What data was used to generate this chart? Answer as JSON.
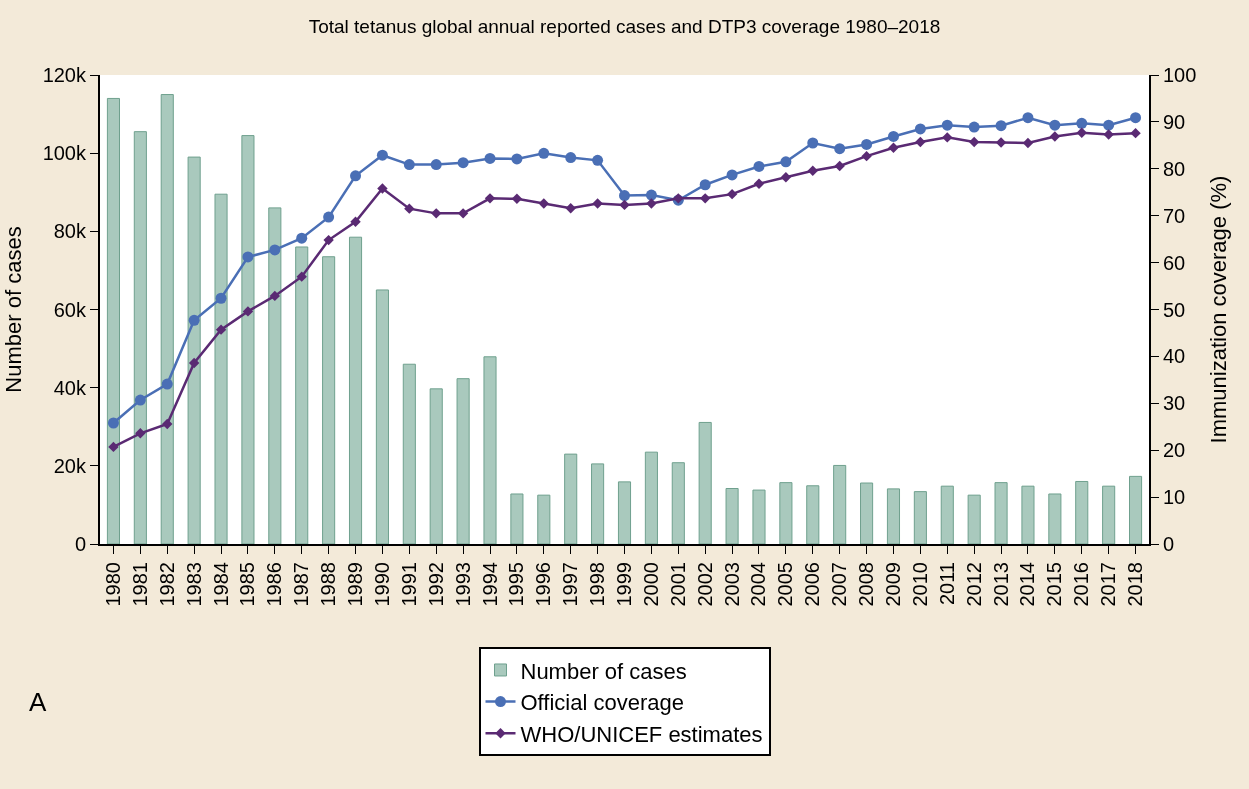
{
  "chart_data": {
    "type": "bar",
    "title": "Total tetanus global annual reported cases and DTP3 coverage 1980–2018",
    "xlabel": null,
    "ylabel": "Number of cases",
    "y2label": "Immunization coverage (%)",
    "categories": [
      "1980",
      "1981",
      "1982",
      "1983",
      "1984",
      "1985",
      "1986",
      "1987",
      "1988",
      "1989",
      "1990",
      "1991",
      "1992",
      "1993",
      "1994",
      "1995",
      "1996",
      "1997",
      "1998",
      "1999",
      "2000",
      "2001",
      "2002",
      "2003",
      "2004",
      "2005",
      "2006",
      "2007",
      "2008",
      "2009",
      "2010",
      "2011",
      "2012",
      "2013",
      "2014",
      "2015",
      "2016",
      "2017",
      "2018"
    ],
    "series": [
      {
        "name": "Number of cases",
        "color": "#a9c9bd",
        "values": [
          114000,
          105500,
          115000,
          99000,
          89500,
          104500,
          86000,
          76000,
          73500,
          78500,
          65000,
          46000,
          39700,
          42300,
          47900,
          12800,
          12500,
          23000,
          20500,
          15900,
          23500,
          20800,
          31100,
          14200,
          13800,
          15700,
          14900,
          20100,
          15600,
          14100,
          13400,
          14800,
          12500,
          15700,
          14800,
          12800,
          16000,
          14800,
          17300
        ]
      },
      {
        "name": "Official coverage",
        "type": "line",
        "axis": "y2",
        "marker": "circle",
        "color": "#4a6fb5",
        "values": [
          25.8,
          30.7,
          34.1,
          47.7,
          52.4,
          61.2,
          62.7,
          65.2,
          69.7,
          78.5,
          82.9,
          80.9,
          80.9,
          81.3,
          82.2,
          82.1,
          83.3,
          82.4,
          81.8,
          74.3,
          74.4,
          73.3,
          76.6,
          78.7,
          80.5,
          81.5,
          85.5,
          84.3,
          85.2,
          86.9,
          88.5,
          89.3,
          88.9,
          89.2,
          90.9,
          89.3,
          89.7,
          89.3,
          90.9
        ]
      },
      {
        "name": "WHO/UNICEF estimates",
        "type": "line",
        "axis": "y2",
        "marker": "diamond",
        "color": "#5a2a73",
        "values": [
          20.7,
          23.6,
          25.6,
          38.6,
          45.7,
          49.6,
          52.9,
          57.0,
          64.8,
          68.7,
          75.8,
          71.5,
          70.5,
          70.5,
          73.7,
          73.6,
          72.6,
          71.6,
          72.6,
          72.3,
          72.6,
          73.7,
          73.7,
          74.6,
          76.8,
          78.2,
          79.6,
          80.6,
          82.7,
          84.5,
          85.7,
          86.7,
          85.7,
          85.6,
          85.5,
          86.9,
          87.7,
          87.3,
          87.6
        ]
      }
    ],
    "ylim": [
      0,
      120000
    ],
    "yticks": [
      0,
      {
        "value": 20000,
        "label": "20k"
      },
      {
        "value": 40000,
        "label": "40k"
      },
      {
        "value": 60000,
        "label": "60k"
      },
      {
        "value": 80000,
        "label": "80k"
      },
      {
        "value": 100000,
        "label": "100k"
      },
      {
        "value": 120000,
        "label": "120k"
      }
    ],
    "y2lim": [
      0,
      100
    ],
    "y2ticks": [
      0,
      10,
      20,
      30,
      40,
      50,
      60,
      70,
      80,
      90,
      100
    ],
    "legend": "bottom",
    "line_style": "solid",
    "annotations": [
      "A"
    ]
  }
}
